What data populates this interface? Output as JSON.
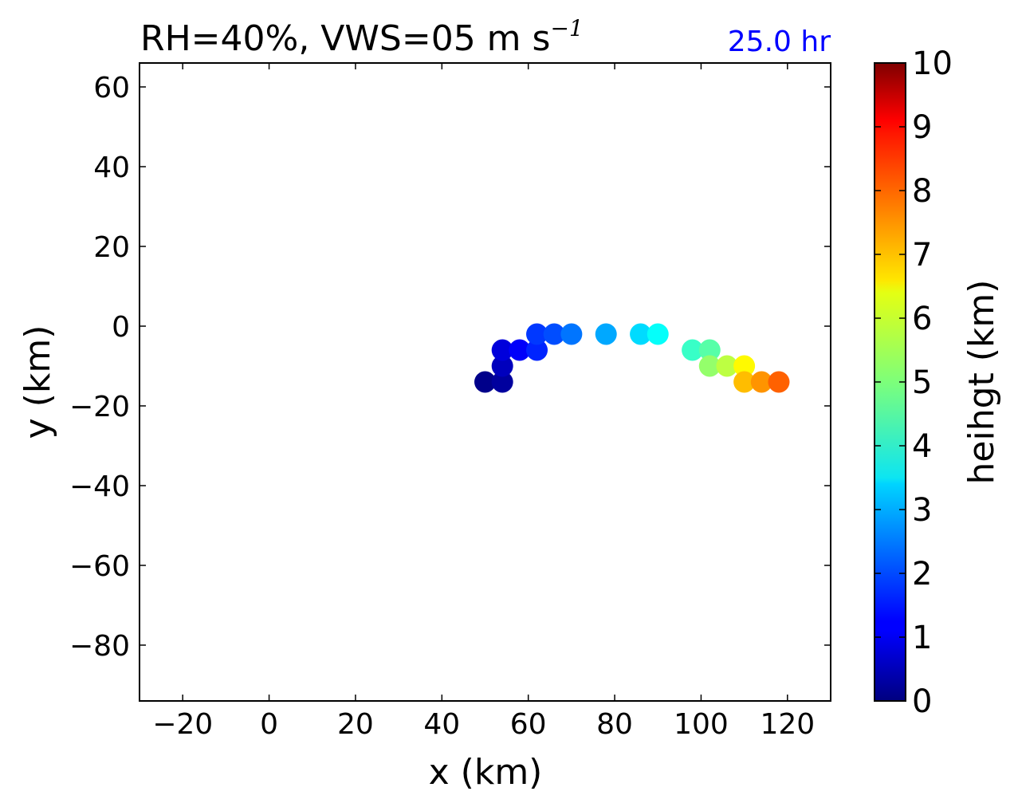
{
  "chart_data": {
    "type": "scatter",
    "title": "RH=40%, VWS=05 m s",
    "title_superscript": "−1",
    "time_label": "25.0 hr",
    "time_label_color": "#0000ff",
    "xlabel": "x (km)",
    "ylabel": "y (km)",
    "xlim": [
      -30,
      130
    ],
    "ylim": [
      -94,
      66
    ],
    "xticks": [
      -20,
      0,
      20,
      40,
      60,
      80,
      100,
      120
    ],
    "yticks": [
      -80,
      -60,
      -40,
      -20,
      0,
      20,
      40,
      60
    ],
    "tick_minus": "−",
    "grid": false,
    "colormap": "jet",
    "colorbar": {
      "label": "heihgt (km)",
      "range": [
        0,
        10
      ],
      "ticks": [
        0,
        1,
        2,
        3,
        4,
        5,
        6,
        7,
        8,
        9,
        10
      ]
    },
    "points": [
      {
        "x": 50,
        "y": -14,
        "height": 0.1
      },
      {
        "x": 54,
        "y": -14,
        "height": 0.3
      },
      {
        "x": 54,
        "y": -10,
        "height": 0.6
      },
      {
        "x": 54,
        "y": -6,
        "height": 0.9
      },
      {
        "x": 58,
        "y": -6,
        "height": 1.2
      },
      {
        "x": 62,
        "y": -6,
        "height": 1.6
      },
      {
        "x": 62,
        "y": -2,
        "height": 1.8
      },
      {
        "x": 66,
        "y": -2,
        "height": 2.0
      },
      {
        "x": 70,
        "y": -2,
        "height": 2.4
      },
      {
        "x": 78,
        "y": -2,
        "height": 2.9
      },
      {
        "x": 86,
        "y": -2,
        "height": 3.4
      },
      {
        "x": 90,
        "y": -2,
        "height": 3.8
      },
      {
        "x": 98,
        "y": -6,
        "height": 4.3
      },
      {
        "x": 102,
        "y": -6,
        "height": 4.6
      },
      {
        "x": 102,
        "y": -10,
        "height": 5.2
      },
      {
        "x": 106,
        "y": -10,
        "height": 5.6
      },
      {
        "x": 110,
        "y": -10,
        "height": 6.3
      },
      {
        "x": 110,
        "y": -14,
        "height": 6.9
      },
      {
        "x": 114,
        "y": -14,
        "height": 7.3
      },
      {
        "x": 118,
        "y": -14,
        "height": 7.8
      }
    ]
  }
}
